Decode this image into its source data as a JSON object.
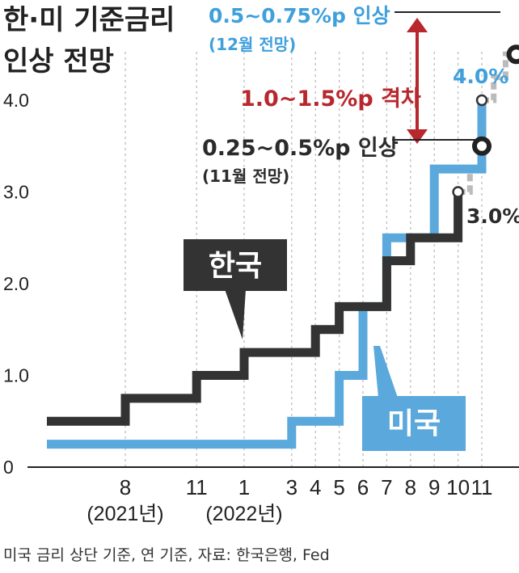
{
  "title_line1": "한·미 기준금리",
  "title_line2": "인상 전망",
  "note": "미국 금리 상단 기준, 연 기준, 자료: 한국은행, Fed",
  "annotations": {
    "us_forecast": "0.5~0.75%p 인상",
    "us_forecast_sub": "(12월 전망)",
    "gap": "1.0~1.5%p 격차",
    "kr_forecast": "0.25~0.5%p 인상",
    "kr_forecast_sub": "(11월 전망)",
    "us_current": "4.0%",
    "kr_current": "3.0%"
  },
  "colors": {
    "korea": "#333333",
    "us": "#5ba9dc",
    "forecast": "#bbbbbb",
    "gap": "#b8272d"
  },
  "chart_data": {
    "type": "line",
    "step": true,
    "ylim": [
      0,
      4.0
    ],
    "yticks": [
      "0",
      "1.0",
      "2.0",
      "3.0",
      "4.0"
    ],
    "xticks": [
      {
        "x": 8,
        "label": "8"
      },
      {
        "x": 11,
        "label": "11"
      },
      {
        "x": 13,
        "label": "1"
      },
      {
        "x": 15,
        "label": "3"
      },
      {
        "x": 16,
        "label": "4"
      },
      {
        "x": 17,
        "label": "5"
      },
      {
        "x": 18,
        "label": "6"
      },
      {
        "x": 19,
        "label": "7"
      },
      {
        "x": 20,
        "label": "8"
      },
      {
        "x": 21,
        "label": "9"
      },
      {
        "x": 22,
        "label": "10"
      },
      {
        "x": 23,
        "label": "11"
      }
    ],
    "year_labels": [
      {
        "x": 8,
        "label": "(2021년)"
      },
      {
        "x": 13,
        "label": "(2022년)"
      }
    ],
    "series": [
      {
        "name": "한국",
        "points": [
          [
            4.7,
            0.5
          ],
          [
            8,
            0.5
          ],
          [
            8,
            0.75
          ],
          [
            11,
            0.75
          ],
          [
            11,
            1.0
          ],
          [
            13,
            1.0
          ],
          [
            13,
            1.25
          ],
          [
            16,
            1.25
          ],
          [
            16,
            1.5
          ],
          [
            17,
            1.5
          ],
          [
            17,
            1.75
          ],
          [
            19,
            1.75
          ],
          [
            19,
            2.25
          ],
          [
            20,
            2.25
          ],
          [
            20,
            2.5
          ],
          [
            22,
            2.5
          ],
          [
            22,
            3.0
          ]
        ],
        "forecast": [
          [
            22,
            3.0
          ],
          [
            22.5,
            3.0
          ],
          [
            22.5,
            3.25
          ],
          [
            23,
            3.25
          ],
          [
            23,
            3.5
          ]
        ]
      },
      {
        "name": "미국",
        "points": [
          [
            4.7,
            0.25
          ],
          [
            15,
            0.25
          ],
          [
            15,
            0.5
          ],
          [
            17,
            0.5
          ],
          [
            17,
            1.0
          ],
          [
            18,
            1.0
          ],
          [
            18,
            1.75
          ],
          [
            19,
            1.75
          ],
          [
            19,
            2.5
          ],
          [
            21,
            2.5
          ],
          [
            21,
            3.25
          ],
          [
            23,
            3.25
          ],
          [
            23,
            4.0
          ]
        ],
        "forecast": [
          [
            23,
            4.0
          ],
          [
            23.5,
            4.0
          ],
          [
            23.5,
            4.25
          ],
          [
            24,
            4.25
          ],
          [
            24,
            4.5
          ],
          [
            24.45,
            4.5
          ]
        ]
      }
    ]
  }
}
